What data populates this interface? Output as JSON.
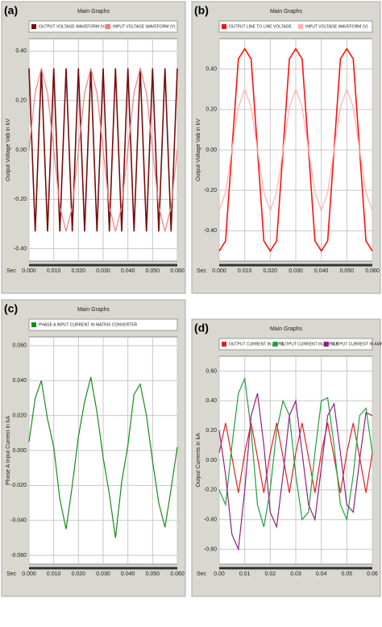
{
  "chart_data": [
    {
      "type": "line",
      "label": "(a)",
      "title": "Main Graphs",
      "ylabel": "Output Voltage Vab in kV",
      "xlabel": "Sec",
      "x": [
        0,
        0.0025,
        0.005,
        0.0075,
        0.01,
        0.0125,
        0.015,
        0.0175,
        0.02,
        0.0225,
        0.025,
        0.0275,
        0.03,
        0.0325,
        0.035,
        0.0375,
        0.04,
        0.0425,
        0.045,
        0.0475,
        0.05,
        0.0525,
        0.055,
        0.0575,
        0.06
      ],
      "series": [
        {
          "name": "OUTPUT VOLTAGE WAVEFORM (V)",
          "color": "#7a0a0a",
          "values": [
            0.33,
            -0.33,
            0.33,
            -0.33,
            0.33,
            -0.33,
            0.33,
            -0.33,
            0.33,
            -0.33,
            0.33,
            -0.33,
            0.33,
            -0.33,
            0.33,
            -0.33,
            0.33,
            -0.33,
            0.33,
            -0.33,
            0.33,
            -0.33,
            0.33,
            -0.33,
            0.33
          ]
        },
        {
          "name": "INPUT VOLTAGE WAVEFORM (V)",
          "color": "#f08080",
          "values": [
            0,
            0.23,
            0.33,
            0.23,
            0,
            -0.23,
            -0.33,
            -0.23,
            0,
            0.23,
            0.33,
            0.23,
            0,
            -0.23,
            -0.33,
            -0.23,
            0,
            0.23,
            0.33,
            0.23,
            0,
            -0.23,
            -0.33,
            -0.23,
            0
          ]
        }
      ],
      "xlim": [
        0,
        0.06
      ],
      "xticks": [
        {
          "value": 0,
          "label": "0.000"
        },
        {
          "value": 0.01,
          "label": "0.010"
        },
        {
          "value": 0.02,
          "label": "0.020"
        },
        {
          "value": 0.03,
          "label": "0.030"
        },
        {
          "value": 0.04,
          "label": "0.040"
        },
        {
          "value": 0.05,
          "label": "0.050"
        },
        {
          "value": 0.06,
          "label": "0.060"
        }
      ],
      "ylim": [
        -0.45,
        0.45
      ],
      "yticks": [
        {
          "value": -0.4,
          "label": "-0.40"
        },
        {
          "value": -0.2,
          "label": "-0.20"
        },
        {
          "value": 0,
          "label": "0.00"
        },
        {
          "value": 0.2,
          "label": "0.20"
        },
        {
          "value": 0.4,
          "label": "0.40"
        }
      ],
      "grid": true
    },
    {
      "type": "line",
      "label": "(b)",
      "title": "Main Graphs",
      "ylabel": "Output Voltage Vab in kV",
      "xlabel": "Sec",
      "x": [
        0,
        0.0025,
        0.005,
        0.0075,
        0.01,
        0.0125,
        0.015,
        0.0175,
        0.02,
        0.0225,
        0.025,
        0.0275,
        0.03,
        0.0325,
        0.035,
        0.0375,
        0.04,
        0.0425,
        0.045,
        0.0475,
        0.05,
        0.0525,
        0.055,
        0.0575,
        0.06
      ],
      "series": [
        {
          "name": "OUTPUT LINE TO LINE VOLTAGE",
          "color": "#ff1010",
          "values": [
            -0.5,
            -0.45,
            0,
            0.45,
            0.5,
            0.45,
            0,
            -0.45,
            -0.5,
            -0.45,
            0,
            0.45,
            0.5,
            0.45,
            0,
            -0.45,
            -0.5,
            -0.45,
            0,
            0.45,
            0.5,
            0.45,
            0,
            -0.45,
            -0.5
          ]
        },
        {
          "name": "INPUT VOLTAGE WAVEFORM (V)",
          "color": "#ffb0b0",
          "values": [
            -0.3,
            -0.21,
            0,
            0.21,
            0.3,
            0.21,
            0,
            -0.21,
            -0.3,
            -0.21,
            0,
            0.21,
            0.3,
            0.21,
            0,
            -0.21,
            -0.3,
            -0.21,
            0,
            0.21,
            0.3,
            0.21,
            0,
            -0.21,
            -0.3
          ]
        }
      ],
      "xlim": [
        0,
        0.06
      ],
      "xticks": [
        {
          "value": 0,
          "label": "0.000"
        },
        {
          "value": 0.01,
          "label": "0.010"
        },
        {
          "value": 0.02,
          "label": "0.020"
        },
        {
          "value": 0.03,
          "label": "0.030"
        },
        {
          "value": 0.04,
          "label": "0.040"
        },
        {
          "value": 0.05,
          "label": "0.050"
        },
        {
          "value": 0.06,
          "label": "0.060"
        }
      ],
      "ylim": [
        -0.55,
        0.55
      ],
      "yticks": [
        {
          "value": -0.4,
          "label": "-0.40"
        },
        {
          "value": -0.2,
          "label": "-0.20"
        },
        {
          "value": 0,
          "label": "0.00"
        },
        {
          "value": 0.2,
          "label": "0.20"
        },
        {
          "value": 0.4,
          "label": "0.40"
        }
      ],
      "grid": true
    },
    {
      "type": "line",
      "label": "(c)",
      "title": "Main Graphs",
      "ylabel": "Phase A Input Current in kA",
      "xlabel": "Sec",
      "x": [
        0,
        0.0025,
        0.005,
        0.0075,
        0.01,
        0.0125,
        0.015,
        0.0175,
        0.02,
        0.0225,
        0.025,
        0.0275,
        0.03,
        0.0325,
        0.035,
        0.0375,
        0.04,
        0.0425,
        0.045,
        0.0475,
        0.05,
        0.0525,
        0.055,
        0.0575,
        0.06
      ],
      "series": [
        {
          "name": "PHASE A INPUT CURRENT IN MATRIX CONVERTER",
          "color": "#1a8a1a",
          "values": [
            0.005,
            0.03,
            0.04,
            0.018,
            0.002,
            -0.028,
            -0.045,
            -0.02,
            0.008,
            0.028,
            0.042,
            0.022,
            -0.004,
            -0.025,
            -0.05,
            -0.018,
            0.003,
            0.032,
            0.038,
            0.02,
            -0.006,
            -0.03,
            -0.044,
            -0.022,
            0.002
          ]
        }
      ],
      "xlim": [
        0,
        0.06
      ],
      "xticks": [
        {
          "value": 0,
          "label": "0.000"
        },
        {
          "value": 0.01,
          "label": "0.010"
        },
        {
          "value": 0.02,
          "label": "0.020"
        },
        {
          "value": 0.03,
          "label": "0.030"
        },
        {
          "value": 0.04,
          "label": "0.040"
        },
        {
          "value": 0.05,
          "label": "0.050"
        },
        {
          "value": 0.06,
          "label": "0.060"
        }
      ],
      "ylim": [
        -0.065,
        0.065
      ],
      "yticks": [
        {
          "value": -0.06,
          "label": "-0.060"
        },
        {
          "value": -0.04,
          "label": "-0.040"
        },
        {
          "value": -0.02,
          "label": "-0.020"
        },
        {
          "value": 0,
          "label": "0.000"
        },
        {
          "value": 0.02,
          "label": "0.020"
        },
        {
          "value": 0.04,
          "label": "0.040"
        },
        {
          "value": 0.06,
          "label": "0.060"
        }
      ],
      "grid": true
    },
    {
      "type": "line",
      "label": "(d)",
      "title": "Main Graphs",
      "ylabel": "Output Currents in kA",
      "xlabel": "Sec",
      "x": [
        0,
        0.0025,
        0.005,
        0.0075,
        0.01,
        0.0125,
        0.015,
        0.0175,
        0.02,
        0.0225,
        0.025,
        0.0275,
        0.03,
        0.0325,
        0.035,
        0.0375,
        0.04,
        0.0425,
        0.045,
        0.0475,
        0.05,
        0.0525,
        0.055,
        0.0575,
        0.06
      ],
      "series": [
        {
          "name": "OUTPUT CURRENT IN AMPS",
          "color": "#e02020",
          "values": [
            0.05,
            0.25,
            0.02,
            -0.22,
            0.05,
            0.25,
            0.02,
            -0.22,
            0.05,
            0.25,
            0.02,
            -0.22,
            0.05,
            0.25,
            0.02,
            -0.22,
            0.05,
            0.25,
            0.02,
            -0.22,
            0.05,
            0.25,
            0.02,
            -0.22,
            0.05
          ]
        },
        {
          "name": "OUTPUT CURRENT IN AMPS B",
          "color": "#20a040",
          "values": [
            -0.2,
            -0.3,
            0.1,
            0.45,
            0.55,
            0.2,
            -0.3,
            -0.45,
            -0.2,
            0.2,
            0.4,
            0.3,
            -0.1,
            -0.4,
            -0.35,
            0.05,
            0.4,
            0.42,
            0.1,
            -0.3,
            -0.4,
            -0.1,
            0.3,
            0.35,
            0.05
          ]
        },
        {
          "name": "OUTPUT CURRENT IN AMPS C",
          "color": "#902080",
          "values": [
            0.2,
            -0.1,
            -0.5,
            -0.6,
            -0.2,
            0.3,
            0.45,
            0.1,
            -0.35,
            -0.45,
            -0.1,
            0.3,
            0.4,
            0.05,
            -0.3,
            -0.4,
            -0.05,
            0.3,
            0.38,
            0.05,
            -0.3,
            -0.35,
            0,
            0.32,
            0.3
          ]
        }
      ],
      "xlim": [
        0,
        0.06
      ],
      "xticks": [
        {
          "value": 0,
          "label": "0.00"
        },
        {
          "value": 0.01,
          "label": "0.01"
        },
        {
          "value": 0.02,
          "label": "0.02"
        },
        {
          "value": 0.03,
          "label": "0.03"
        },
        {
          "value": 0.04,
          "label": "0.04"
        },
        {
          "value": 0.05,
          "label": "0.05"
        },
        {
          "value": 0.06,
          "label": "0.06"
        }
      ],
      "ylim": [
        -0.7,
        0.7
      ],
      "yticks": [
        {
          "value": -0.6,
          "label": "-0.60"
        },
        {
          "value": -0.4,
          "label": "-0.40"
        },
        {
          "value": -0.2,
          "label": "-0.20"
        },
        {
          "value": 0,
          "label": "0.00"
        },
        {
          "value": 0.2,
          "label": "0.20"
        },
        {
          "value": 0.4,
          "label": "0.40"
        },
        {
          "value": 0.6,
          "label": "0.60"
        }
      ],
      "grid": true
    }
  ]
}
